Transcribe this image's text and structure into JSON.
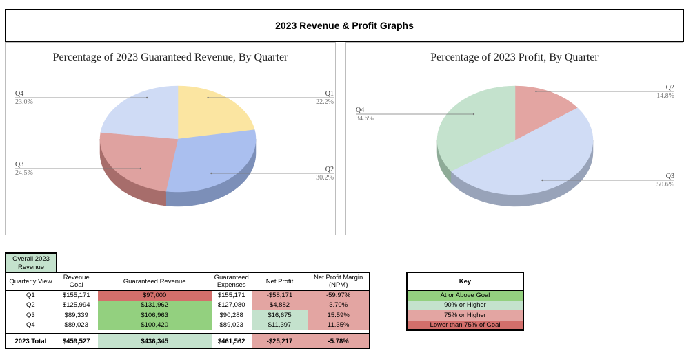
{
  "page": {
    "title": "2023 Revenue & Profit Graphs"
  },
  "chart_data": [
    {
      "type": "pie",
      "title": "Percentage of 2023 Guaranteed Revenue, By Quarter",
      "slices": [
        {
          "label": "Q1",
          "pct": 22.2,
          "display": "22.2%",
          "color": "#fbe5a1",
          "side": "#c7b479"
        },
        {
          "label": "Q2",
          "pct": 30.2,
          "display": "30.2%",
          "color": "#aabfef",
          "side": "#7c8fb8"
        },
        {
          "label": "Q3",
          "pct": 24.5,
          "display": "24.5%",
          "color": "#dfa2a0",
          "side": "#a76d6b"
        },
        {
          "label": "Q4",
          "pct": 23.0,
          "display": "23.0%",
          "color": "#cfdbf5",
          "side": "#98a6c1"
        }
      ]
    },
    {
      "type": "pie",
      "title": "Percentage of 2023 Profit, By Quarter",
      "slices": [
        {
          "label": "Q2",
          "pct": 14.8,
          "display": "14.8%",
          "color": "#e3a5a2",
          "side": "#ab7370"
        },
        {
          "label": "Q3",
          "pct": 50.6,
          "display": "50.6%",
          "color": "#d0dcf5",
          "side": "#98a3b9"
        },
        {
          "label": "Q4",
          "pct": 34.6,
          "display": "34.6%",
          "color": "#c4e2cd",
          "side": "#8eab97"
        }
      ]
    }
  ],
  "table": {
    "overall_tag": "Overall 2023 Revenue",
    "headers": {
      "view": "Quarterly View",
      "goal": "Revenue Goal",
      "guaranteed": "Guaranteed Revenue",
      "expenses": "Guaranteed Expenses",
      "net": "Net Profit",
      "npm": "Net Profit Margin (NPM)"
    },
    "rows": [
      {
        "q": "Q1",
        "goal": "$155,171",
        "rev": "$97,000",
        "rev_status": "r-dark",
        "exp": "$155,171",
        "net": "-$58,171",
        "net_status": "r-light",
        "npm": "-59.97%",
        "npm_status": "r-light"
      },
      {
        "q": "Q2",
        "goal": "$125,994",
        "rev": "$131,962",
        "rev_status": "g-dark",
        "exp": "$127,080",
        "net": "$4,882",
        "net_status": "r-light",
        "npm": "3.70%",
        "npm_status": "r-light"
      },
      {
        "q": "Q3",
        "goal": "$89,339",
        "rev": "$106,963",
        "rev_status": "g-dark",
        "exp": "$90,288",
        "net": "$16,675",
        "net_status": "g-light",
        "npm": "15.59%",
        "npm_status": "r-light"
      },
      {
        "q": "Q4",
        "goal": "$89,023",
        "rev": "$100,420",
        "rev_status": "g-dark",
        "exp": "$89,023",
        "net": "$11,397",
        "net_status": "g-light",
        "npm": "11.35%",
        "npm_status": "r-light"
      }
    ],
    "total": {
      "q": "2023 Total",
      "goal": "$459,527",
      "rev": "$436,345",
      "rev_status": "g-light",
      "exp": "$461,562",
      "net": "-$25,217",
      "net_status": "r-light",
      "npm": "-5.78%",
      "npm_status": "r-light"
    }
  },
  "key": {
    "title": "Key",
    "items": [
      {
        "label": "At or Above Goal",
        "status": "g-dark"
      },
      {
        "label": "90% or Higher",
        "status": "g-light"
      },
      {
        "label": "75% or Higher",
        "status": "r-light"
      },
      {
        "label": "Lower than 75% of Goal",
        "status": "r-dark"
      }
    ]
  },
  "colors": {
    "g_dark": "#93d07f",
    "g_light": "#c4e2cd",
    "r_light": "#e3a5a2",
    "r_dark": "#d36f6b"
  }
}
